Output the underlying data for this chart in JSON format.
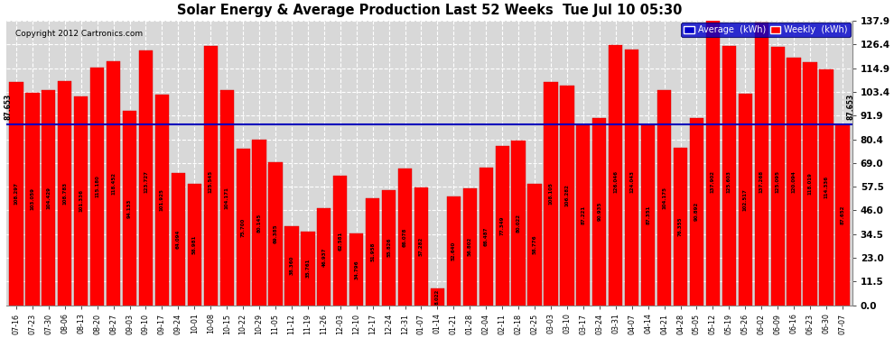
{
  "title": "Solar Energy & Average Production Last 52 Weeks  Tue Jul 10 05:30",
  "copyright": "Copyright 2012 Cartronics.com",
  "legend_labels": [
    "Average  (kWh)",
    "Weekly  (kWh)"
  ],
  "legend_colors": [
    "#0000cc",
    "#ff0000"
  ],
  "average_line": 87.653,
  "average_label": "87.653",
  "bar_color": "#ff0000",
  "bar_edge_color": "#cc0000",
  "background_color": "#ffffff",
  "plot_bg_color": "#d8d8d8",
  "grid_color": "#ffffff",
  "yticks": [
    0.0,
    11.5,
    23.0,
    34.5,
    46.0,
    57.5,
    69.0,
    80.4,
    91.9,
    103.4,
    114.9,
    126.4,
    137.9
  ],
  "xlabels": [
    "07-16",
    "07-23",
    "07-30",
    "08-06",
    "08-13",
    "08-20",
    "08-27",
    "09-03",
    "09-10",
    "09-17",
    "09-24",
    "10-01",
    "10-08",
    "10-15",
    "10-22",
    "10-29",
    "11-05",
    "11-12",
    "11-19",
    "11-26",
    "12-03",
    "12-10",
    "12-17",
    "12-24",
    "12-31",
    "01-07",
    "01-14",
    "01-21",
    "01-28",
    "02-04",
    "02-11",
    "02-18",
    "02-25",
    "03-03",
    "03-10",
    "03-17",
    "03-24",
    "03-31",
    "04-07",
    "04-14",
    "04-21",
    "04-28",
    "05-05",
    "05-12",
    "05-19",
    "05-26",
    "06-02",
    "06-09",
    "06-16",
    "06-23",
    "06-30",
    "07-07"
  ],
  "bar_values": [
    108.297,
    103.059,
    104.429,
    108.783,
    101.336,
    115.18,
    118.452,
    94.133,
    123.727,
    101.925,
    64.094,
    58.981,
    125.545,
    104.171,
    75.7,
    80.145,
    69.385,
    38.36,
    35.761,
    46.937,
    62.581,
    34.796,
    51.958,
    55.826,
    66.078,
    57.282,
    8.022,
    52.64,
    56.802,
    66.487,
    77.349,
    80.022,
    58.776,
    108.105,
    106.282,
    87.221,
    90.935,
    126.046,
    124.043,
    87.351,
    104.175,
    76.355,
    90.892,
    137.902,
    125.603,
    102.517,
    137.268,
    125.095,
    120.094,
    118.019,
    114.336,
    87.652
  ],
  "ylim": [
    0.0,
    137.9
  ],
  "figsize": [
    9.9,
    3.75
  ],
  "dpi": 100
}
